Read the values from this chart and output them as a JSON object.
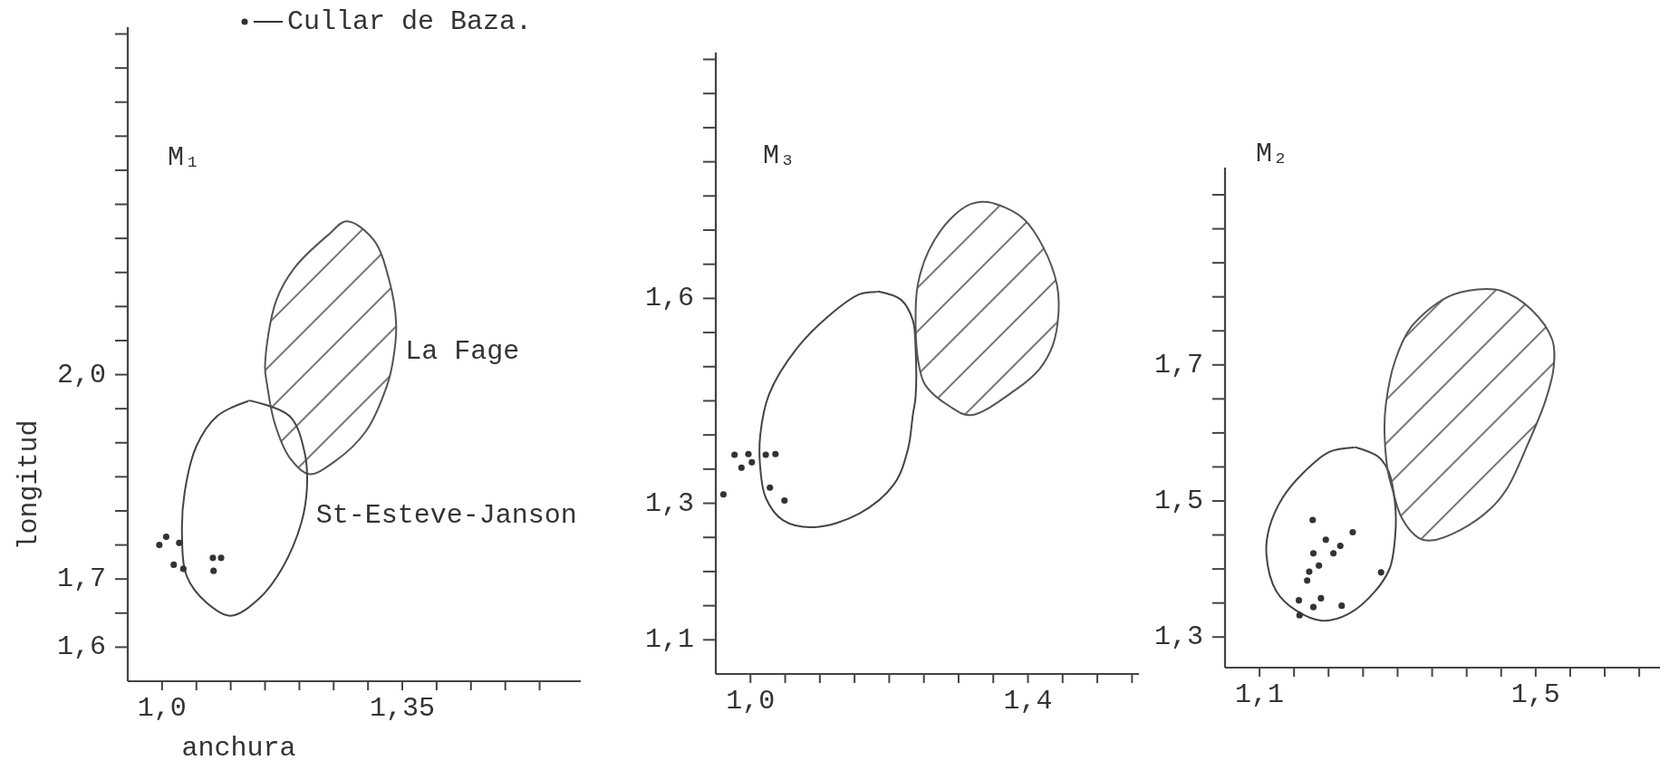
{
  "chart_data": [
    {
      "type": "scatter",
      "title": "M₁",
      "xlabel": "anchura",
      "ylabel": "longitud",
      "legend": "top",
      "xlim": [
        0.95,
        1.61
      ],
      "ylim": [
        1.55,
        2.51
      ],
      "xticks": [
        {
          "value": 1.0,
          "label": "1,0"
        },
        {
          "value": 1.05,
          "label": null
        },
        {
          "value": 1.1,
          "label": null
        },
        {
          "value": 1.15,
          "label": null
        },
        {
          "value": 1.2,
          "label": null
        },
        {
          "value": 1.25,
          "label": null
        },
        {
          "value": 1.3,
          "label": null
        },
        {
          "value": 1.35,
          "label": "1,35"
        },
        {
          "value": 1.4,
          "label": null
        },
        {
          "value": 1.45,
          "label": null
        },
        {
          "value": 1.5,
          "label": null
        },
        {
          "value": 1.55,
          "label": null
        }
      ],
      "yticks": [
        {
          "value": 1.6,
          "label": "1,6"
        },
        {
          "value": 1.65,
          "label": null
        },
        {
          "value": 1.7,
          "label": "1,7"
        },
        {
          "value": 1.75,
          "label": null
        },
        {
          "value": 1.8,
          "label": null
        },
        {
          "value": 1.85,
          "label": null
        },
        {
          "value": 1.9,
          "label": null
        },
        {
          "value": 1.95,
          "label": null
        },
        {
          "value": 2.0,
          "label": "2,0"
        },
        {
          "value": 2.05,
          "label": null
        },
        {
          "value": 2.1,
          "label": null
        },
        {
          "value": 2.15,
          "label": null
        },
        {
          "value": 2.2,
          "label": null
        },
        {
          "value": 2.25,
          "label": null
        },
        {
          "value": 2.3,
          "label": null
        },
        {
          "value": 2.35,
          "label": null
        },
        {
          "value": 2.4,
          "label": null
        },
        {
          "value": 2.45,
          "label": null
        },
        {
          "value": 2.5,
          "label": null
        }
      ],
      "series": [
        {
          "type": "area",
          "name": "La Fage",
          "color": "#555555",
          "x": [
            1.269,
            1.308,
            1.33,
            1.341,
            1.336,
            1.327,
            1.297,
            1.252,
            1.214,
            1.186,
            1.164,
            1.153,
            1.15,
            1.166,
            1.194,
            1.242
          ],
          "values": [
            2.225,
            2.198,
            2.142,
            2.074,
            2.018,
            1.982,
            1.917,
            1.873,
            1.854,
            1.878,
            1.929,
            1.985,
            2.013,
            2.108,
            2.158,
            2.205
          ]
        },
        {
          "type": "line",
          "name": "St-Esteve-Janson",
          "color": "#444444",
          "x": [
            1.127,
            1.186,
            1.208,
            1.211,
            1.203,
            1.175,
            1.141,
            1.1,
            1.064,
            1.036,
            1.029,
            1.033,
            1.05,
            1.08
          ],
          "values": [
            1.962,
            1.939,
            1.884,
            1.833,
            1.783,
            1.716,
            1.671,
            1.646,
            1.666,
            1.704,
            1.767,
            1.828,
            1.895,
            1.939
          ]
        },
        {
          "type": "scatter",
          "name": "Cullar de Baza.",
          "color": "#333333",
          "marker": "circle",
          "x": [
            0.996,
            1.006,
            1.025,
            1.017,
            1.031,
            1.074,
            1.086,
            1.075
          ],
          "values": [
            1.75,
            1.762,
            1.753,
            1.721,
            1.715,
            1.731,
            1.731,
            1.712
          ]
        }
      ]
    },
    {
      "type": "scatter",
      "title": "M₃",
      "xlim": [
        0.95,
        1.56
      ],
      "ylim": [
        1.05,
        1.96
      ],
      "xticks": [
        {
          "value": 1.0,
          "label": "1,0"
        },
        {
          "value": 1.05,
          "label": null
        },
        {
          "value": 1.1,
          "label": null
        },
        {
          "value": 1.15,
          "label": null
        },
        {
          "value": 1.2,
          "label": null
        },
        {
          "value": 1.25,
          "label": null
        },
        {
          "value": 1.3,
          "label": null
        },
        {
          "value": 1.35,
          "label": null
        },
        {
          "value": 1.4,
          "label": "1,4"
        },
        {
          "value": 1.45,
          "label": null
        },
        {
          "value": 1.5,
          "label": null
        },
        {
          "value": 1.55,
          "label": null
        }
      ],
      "yticks": [
        {
          "value": 1.1,
          "label": "1,1"
        },
        {
          "value": 1.15,
          "label": null
        },
        {
          "value": 1.2,
          "label": null
        },
        {
          "value": 1.25,
          "label": null
        },
        {
          "value": 1.3,
          "label": "1,3"
        },
        {
          "value": 1.35,
          "label": null
        },
        {
          "value": 1.4,
          "label": null
        },
        {
          "value": 1.45,
          "label": null
        },
        {
          "value": 1.5,
          "label": null
        },
        {
          "value": 1.55,
          "label": null
        },
        {
          "value": 1.6,
          "label": "1,6"
        },
        {
          "value": 1.65,
          "label": null
        },
        {
          "value": 1.7,
          "label": null
        },
        {
          "value": 1.75,
          "label": null
        },
        {
          "value": 1.8,
          "label": null
        },
        {
          "value": 1.85,
          "label": null
        },
        {
          "value": 1.9,
          "label": null
        },
        {
          "value": 1.95,
          "label": null
        }
      ],
      "series": [
        {
          "type": "line",
          "color": "#444444",
          "x": [
            1.184,
            1.217,
            1.234,
            1.238,
            1.238,
            1.234,
            1.227,
            1.207,
            1.157,
            1.092,
            1.047,
            1.022,
            1.014,
            1.014,
            1.027,
            1.067,
            1.117,
            1.157
          ],
          "values": [
            1.61,
            1.598,
            1.568,
            1.527,
            1.456,
            1.429,
            1.379,
            1.328,
            1.285,
            1.265,
            1.275,
            1.308,
            1.353,
            1.399,
            1.46,
            1.527,
            1.578,
            1.606
          ]
        },
        {
          "type": "area",
          "color": "#555555",
          "x": [
            1.342,
            1.392,
            1.422,
            1.442,
            1.444,
            1.436,
            1.417,
            1.382,
            1.317,
            1.287,
            1.252,
            1.242,
            1.238,
            1.241,
            1.257,
            1.287,
            1.317
          ],
          "values": [
            1.741,
            1.718,
            1.675,
            1.619,
            1.578,
            1.532,
            1.497,
            1.466,
            1.429,
            1.442,
            1.473,
            1.507,
            1.563,
            1.619,
            1.67,
            1.715,
            1.738
          ]
        },
        {
          "type": "scatter",
          "color": "#333333",
          "marker": "circle",
          "x": [
            0.961,
            0.977,
            0.997,
            0.987,
            1.002,
            1.022,
            1.036,
            1.028,
            1.049
          ],
          "values": [
            1.313,
            1.371,
            1.372,
            1.352,
            1.36,
            1.371,
            1.372,
            1.323,
            1.304
          ]
        }
      ]
    },
    {
      "type": "scatter",
      "title": "M₂",
      "xlim": [
        1.05,
        1.68
      ],
      "ylim": [
        1.255,
        1.99
      ],
      "xticks": [
        {
          "value": 1.1,
          "label": "1,1"
        },
        {
          "value": 1.15,
          "label": null
        },
        {
          "value": 1.2,
          "label": null
        },
        {
          "value": 1.25,
          "label": null
        },
        {
          "value": 1.3,
          "label": null
        },
        {
          "value": 1.35,
          "label": null
        },
        {
          "value": 1.4,
          "label": null
        },
        {
          "value": 1.45,
          "label": null
        },
        {
          "value": 1.5,
          "label": "1,5"
        },
        {
          "value": 1.55,
          "label": null
        },
        {
          "value": 1.6,
          "label": null
        },
        {
          "value": 1.65,
          "label": null
        }
      ],
      "yticks": [
        {
          "value": 1.3,
          "label": "1,3"
        },
        {
          "value": 1.35,
          "label": null
        },
        {
          "value": 1.4,
          "label": null
        },
        {
          "value": 1.45,
          "label": null
        },
        {
          "value": 1.5,
          "label": "1,5"
        },
        {
          "value": 1.55,
          "label": null
        },
        {
          "value": 1.6,
          "label": null
        },
        {
          "value": 1.65,
          "label": null
        },
        {
          "value": 1.7,
          "label": "1,7"
        },
        {
          "value": 1.75,
          "label": null
        },
        {
          "value": 1.8,
          "label": null
        },
        {
          "value": 1.85,
          "label": null
        },
        {
          "value": 1.9,
          "label": null
        },
        {
          "value": 1.95,
          "label": null
        }
      ],
      "series": [
        {
          "type": "line",
          "color": "#444444",
          "x": [
            1.239,
            1.272,
            1.287,
            1.296,
            1.297,
            1.289,
            1.268,
            1.229,
            1.191,
            1.153,
            1.124,
            1.11,
            1.114,
            1.133,
            1.162,
            1.201
          ],
          "values": [
            1.579,
            1.565,
            1.543,
            1.499,
            1.456,
            1.402,
            1.368,
            1.334,
            1.324,
            1.339,
            1.368,
            1.421,
            1.46,
            1.504,
            1.54,
            1.572
          ]
        },
        {
          "type": "area",
          "color": "#555555",
          "x": [
            1.416,
            1.45,
            1.493,
            1.524,
            1.526,
            1.514,
            1.488,
            1.459,
            1.435,
            1.392,
            1.349,
            1.33,
            1.306,
            1.292,
            1.286,
            1.281,
            1.283,
            1.296,
            1.32,
            1.373
          ],
          "values": [
            1.811,
            1.809,
            1.782,
            1.737,
            1.696,
            1.647,
            1.582,
            1.519,
            1.489,
            1.458,
            1.442,
            1.446,
            1.475,
            1.519,
            1.543,
            1.601,
            1.642,
            1.705,
            1.756,
            1.8
          ]
        },
        {
          "type": "scatter",
          "color": "#333333",
          "marker": "circle",
          "x": [
            1.177,
            1.235,
            1.196,
            1.217,
            1.178,
            1.207,
            1.186,
            1.172,
            1.169,
            1.276,
            1.157,
            1.189,
            1.178,
            1.219,
            1.158
          ],
          "values": [
            1.472,
            1.454,
            1.443,
            1.434,
            1.423,
            1.423,
            1.405,
            1.396,
            1.383,
            1.395,
            1.354,
            1.357,
            1.344,
            1.346,
            1.332
          ]
        }
      ]
    }
  ]
}
